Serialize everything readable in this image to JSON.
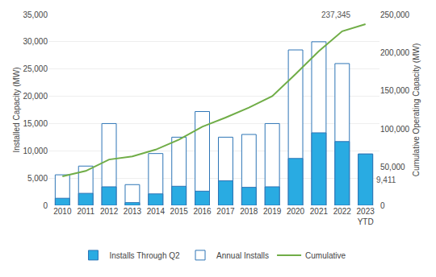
{
  "chart_data": {
    "type": "bar",
    "categories": [
      "2010",
      "2011",
      "2012",
      "2013",
      "2014",
      "2015",
      "2016",
      "2017",
      "2018",
      "2019",
      "2020",
      "2021",
      "2022",
      "2023\nYTD"
    ],
    "series": [
      {
        "name": "Annual Installs",
        "type": "bar",
        "color": "#FFFFFF",
        "values": [
          5600,
          7200,
          15000,
          3800,
          9500,
          12500,
          17200,
          12500,
          13000,
          15000,
          28500,
          30000,
          26000,
          9411
        ]
      },
      {
        "name": "Installs Through Q2",
        "type": "bar",
        "color": "#29ABE2",
        "values": [
          1300,
          2200,
          3400,
          500,
          2100,
          3500,
          2600,
          4500,
          3300,
          3400,
          8600,
          13300,
          11700,
          9411
        ]
      },
      {
        "name": "Cumulative",
        "type": "line",
        "color": "#70AD47",
        "axis": "y2",
        "values": [
          38000,
          45000,
          60000,
          64000,
          73000,
          86000,
          103000,
          115000,
          128000,
          143000,
          172000,
          202000,
          228000,
          237345
        ]
      }
    ],
    "ylabel": "Installed Capacity (MW)",
    "y2label": "Cumulative Operating Capacity (MW)",
    "ylim": [
      0,
      35000
    ],
    "yticks": [
      0,
      {
        "value": 5000,
        "label": "5,000"
      },
      {
        "value": 10000,
        "label": "10,000"
      },
      {
        "value": 15000,
        "label": "15,000"
      },
      {
        "value": 20000,
        "label": "20,000"
      },
      {
        "value": 25000,
        "label": "25,000"
      },
      {
        "value": 30000,
        "label": "30,000"
      },
      {
        "value": 35000,
        "label": "35,000"
      }
    ],
    "y2lim": [
      0,
      250000
    ],
    "y2ticks": [
      0,
      {
        "value": 50000,
        "label": "50,000"
      },
      {
        "value": 100000,
        "label": "100,000"
      },
      {
        "value": 150000,
        "label": "150,000"
      },
      {
        "value": 200000,
        "label": "200,000"
      },
      {
        "value": 250000,
        "label": "250,000"
      }
    ],
    "grid": true,
    "stacked": false,
    "legend": "bottom",
    "annotations": [
      "237,345",
      "9,411"
    ]
  }
}
